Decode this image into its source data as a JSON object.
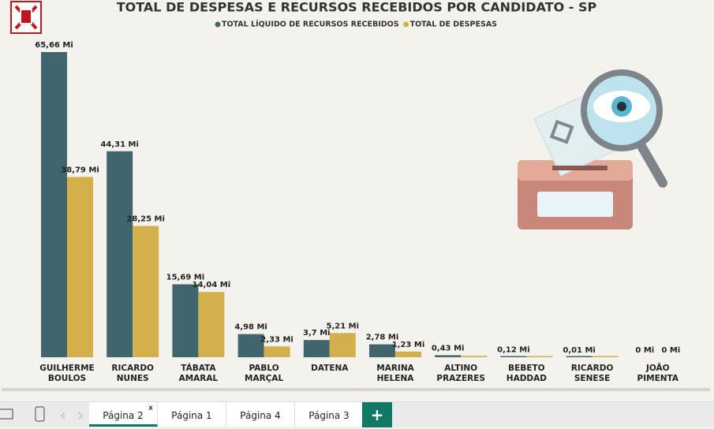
{
  "chart_data": {
    "type": "bar",
    "title": "TOTAL DE DESPESAS E RECURSOS RECEBIDOS POR CANDIDATO - SP",
    "categories": [
      "GUILHERME BOULOS",
      "RICARDO NUNES",
      "TÁBATA AMARAL",
      "PABLO MARÇAL",
      "DATENA",
      "MARINA HELENA",
      "ALTINO PRAZERES",
      "BEBETO HADDAD",
      "RICARDO SENESE",
      "JOÃO PIMENTA"
    ],
    "series": [
      {
        "name": "TOTAL LÍQUIDO DE RECURSOS RECEBIDOS",
        "color": "#41656d",
        "values": [
          65.66,
          44.31,
          15.69,
          4.98,
          3.7,
          2.78,
          0.43,
          0.12,
          0.01,
          0
        ],
        "value_labels": [
          "65,66 Mi",
          "44,31 Mi",
          "15,69 Mi",
          "4,98 Mi",
          "3,7 Mi",
          "2,78 Mi",
          "0,43 Mi",
          "0,12 Mi",
          "0,01 Mi",
          "0 Mi"
        ]
      },
      {
        "name": "TOTAL DE DESPESAS",
        "color": "#d4b04c",
        "values": [
          38.79,
          28.25,
          14.04,
          2.33,
          5.21,
          1.23,
          0.3,
          0.1,
          0.01,
          0
        ],
        "value_labels": [
          "38,79 Mi",
          "28,25 Mi",
          "14,04 Mi",
          "2,33 Mi",
          "5,21 Mi",
          "1,23 Mi",
          null,
          null,
          null,
          "0 Mi"
        ]
      }
    ]
  },
  "tabs": {
    "items": [
      "Página 2",
      "Página 1",
      "Página 4",
      "Página 3"
    ],
    "close": "x",
    "add": "+"
  }
}
